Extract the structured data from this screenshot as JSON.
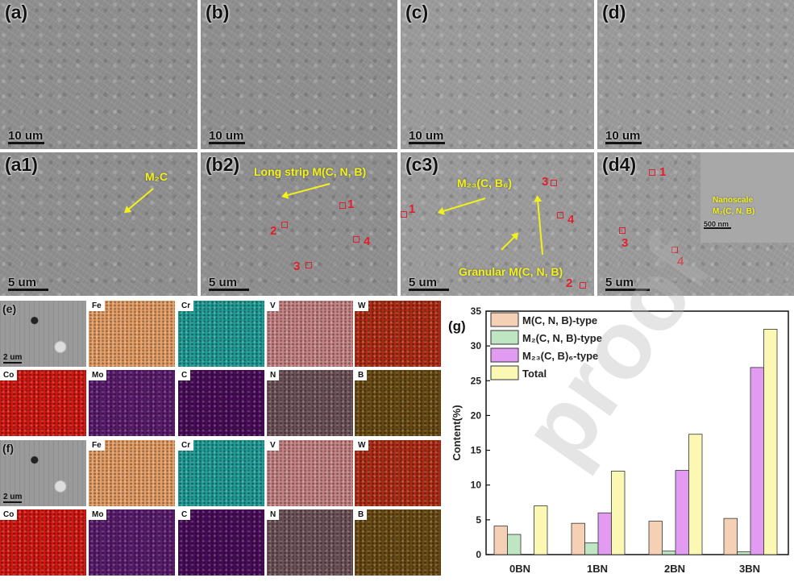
{
  "panels_top": [
    {
      "label": "(a)",
      "scale": "10 um"
    },
    {
      "label": "(b)",
      "scale": "10 um"
    },
    {
      "label": "(c)",
      "scale": "10 um"
    },
    {
      "label": "(d)",
      "scale": "10 um"
    }
  ],
  "panels_mid": [
    {
      "label": "(a1)",
      "scale": "5 um",
      "annotation": "M₂C"
    },
    {
      "label": "(b2)",
      "scale": "5 um",
      "annotation": "Long strip M(C, N, B)",
      "markers": [
        "1",
        "2",
        "3",
        "4"
      ]
    },
    {
      "label": "(c3)",
      "scale": "5 um",
      "annotation1": "M₂₃(C, B₆)",
      "annotation2": "Granular  M(C, N, B)",
      "markers": [
        "1",
        "2",
        "3",
        "4"
      ]
    },
    {
      "label": "(d4)",
      "scale": "5 um",
      "annotation1": "Nanoscale",
      "annotation2": "M₂(C, N, B)",
      "inset_scale": "500 nm",
      "markers": [
        "1",
        "3",
        "4"
      ]
    }
  ],
  "eds_maps": [
    {
      "panel": "(e)",
      "scale": "2 um",
      "rows": [
        [
          "",
          "Fe",
          "Cr",
          "V",
          "W"
        ],
        [
          "Co",
          "Mo",
          "C",
          "N",
          "B"
        ]
      ]
    },
    {
      "panel": "(f)",
      "scale": "2 um",
      "rows": [
        [
          "",
          "Fe",
          "Cr",
          "V",
          "W"
        ],
        [
          "Co",
          "Mo",
          "C",
          "N",
          "B"
        ]
      ]
    }
  ],
  "map_colors": {
    "Fe": "#e9a066",
    "Cr": "#1f9e98",
    "V": "#c98485",
    "W": "#b12b12",
    "Co": "#d6160f",
    "Mo": "#5a1a6e",
    "C": "#4a0a5a",
    "N": "#6e5258",
    "B": "#6a4a10"
  },
  "watermark": "proof",
  "chart_data": {
    "type": "bar",
    "panel_label": "(g)",
    "title": "",
    "xlabel": "",
    "ylabel": "Content(%)",
    "ylim": [
      0,
      35
    ],
    "yticks": [
      0,
      5,
      10,
      15,
      20,
      25,
      30,
      35
    ],
    "categories": [
      "0BN",
      "1BN",
      "2BN",
      "3BN"
    ],
    "legend_position": "top-left",
    "series": [
      {
        "name": "M(C, N, B)-type",
        "color": "#f6d0b4",
        "values": [
          4.1,
          4.5,
          4.8,
          5.2
        ]
      },
      {
        "name": "M₂(C, N, B)-type",
        "color": "#bfe6c2",
        "values": [
          2.9,
          1.7,
          0.5,
          0.4
        ]
      },
      {
        "name": "M₂₃(C, B)₆-type",
        "color": "#e19cf2",
        "values": [
          0,
          6.0,
          12.1,
          26.9
        ]
      },
      {
        "name": "Total",
        "color": "#fbf8b4",
        "values": [
          7.0,
          12.0,
          17.3,
          32.4
        ]
      }
    ]
  }
}
